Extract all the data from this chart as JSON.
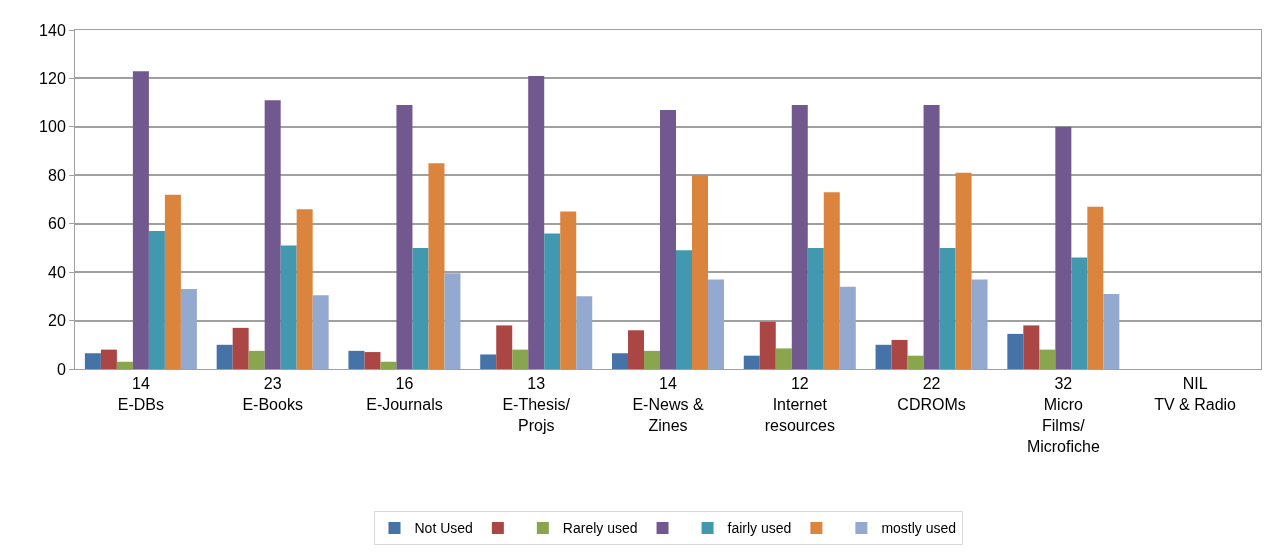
{
  "chart_data": {
    "type": "bar",
    "categories": [
      "14\nE-DBs",
      "23\nE-Books",
      "16\nE-Journals",
      "13\nE-Thesis/\nProjs",
      "14\nE-News &\nZines",
      "12\nInternet\nresources",
      "22\nCDROMs",
      "32\nMicro\nFilms/\nMicrofiche",
      "NIL\nTV & Radio"
    ],
    "series": [
      {
        "name": "Not Used",
        "color": "#4572a7",
        "values": [
          6.5,
          10,
          7.5,
          6,
          6.5,
          5.5,
          10,
          14.5,
          null
        ]
      },
      {
        "color": "#aa4643",
        "values": [
          8,
          17,
          7,
          18,
          16,
          19.5,
          12,
          18,
          null
        ]
      },
      {
        "name": "Rarely used",
        "color": "#89a54e",
        "values": [
          3,
          7.5,
          3,
          8,
          7.5,
          8.5,
          5.5,
          8,
          null
        ]
      },
      {
        "color": "#71588f",
        "values": [
          123,
          111,
          109,
          121,
          107,
          109,
          109,
          100,
          null
        ]
      },
      {
        "name": "fairly used",
        "color": "#4198af",
        "values": [
          57,
          51,
          50,
          56,
          49,
          50,
          50,
          46,
          null
        ]
      },
      {
        "color": "#db843d",
        "values": [
          72,
          66,
          85,
          65,
          80,
          73,
          81,
          67,
          null
        ]
      },
      {
        "name": "mostly used",
        "color": "#93a9cf",
        "values": [
          33,
          30.5,
          39.5,
          30,
          37,
          34,
          37,
          31,
          null
        ]
      }
    ],
    "ylim": [
      0,
      140
    ],
    "yticks": [
      0,
      20,
      40,
      60,
      80,
      100,
      120,
      140
    ],
    "grid": "y",
    "legend": "bottom"
  }
}
